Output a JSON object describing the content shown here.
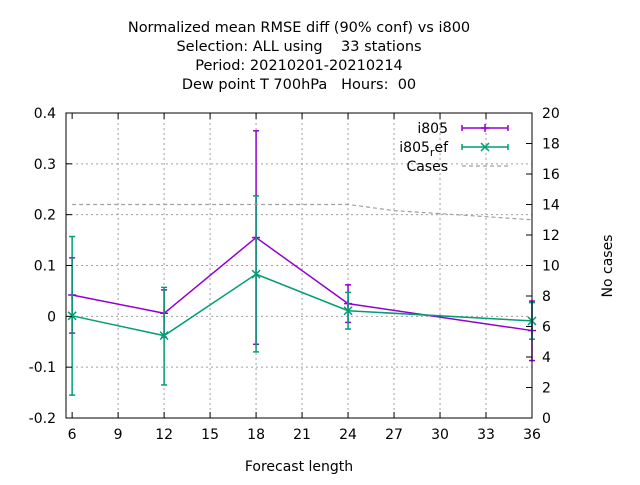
{
  "chart_data": {
    "type": "line",
    "title_lines": [
      "Normalized mean RMSE diff (90% conf) vs i800",
      "Selection: ALL using    33 stations",
      "Period: 20210201-20210214",
      "Dew point T 700hPa   Hours:  00"
    ],
    "xlabel": "Forecast length",
    "ylabel": "",
    "y2label": "No cases",
    "xlim": [
      5.6,
      36
    ],
    "ylim": [
      -0.2,
      0.4
    ],
    "y2lim": [
      0,
      20
    ],
    "xticks": [
      6,
      9,
      12,
      15,
      18,
      21,
      24,
      27,
      30,
      33,
      36
    ],
    "yticks": [
      -0.2,
      -0.1,
      0,
      0.1,
      0.2,
      0.3,
      0.4
    ],
    "ytick_labels": [
      "-0.2",
      "-0.1",
      "0",
      "0.1",
      "0.2",
      "0.3",
      "0.4"
    ],
    "y2ticks": [
      0,
      2,
      4,
      6,
      8,
      10,
      12,
      14,
      16,
      18,
      20
    ],
    "grid": true,
    "legend_position": "top-right",
    "x": [
      6,
      12,
      18,
      24,
      36
    ],
    "series": [
      {
        "name": "i805",
        "color": "#9400d3",
        "axis": "y",
        "marker": "plus",
        "values": [
          0.042,
          0.006,
          0.155,
          0.025,
          -0.028
        ],
        "err_low": [
          -0.033,
          -0.041,
          -0.055,
          -0.012,
          -0.087
        ],
        "err_high": [
          0.115,
          0.052,
          0.365,
          0.062,
          0.03
        ]
      },
      {
        "name": "i805_ref",
        "legend_main": "i805",
        "legend_sub": "r",
        "legend_tail": "ef",
        "color": "#009e73",
        "axis": "y",
        "marker": "x",
        "values": [
          0.001,
          -0.038,
          0.083,
          0.011,
          -0.009
        ],
        "err_low": [
          -0.155,
          -0.135,
          -0.07,
          -0.025,
          -0.045
        ],
        "err_high": [
          0.157,
          0.057,
          0.237,
          0.047,
          0.027
        ]
      },
      {
        "name": "Cases",
        "color": "#a0a0a0",
        "axis": "y2",
        "dash": true,
        "x": [
          6,
          12,
          18,
          24,
          27,
          30,
          33,
          36
        ],
        "values": [
          14,
          14,
          14,
          14,
          13.6,
          13.4,
          13.2,
          13
        ]
      }
    ]
  }
}
